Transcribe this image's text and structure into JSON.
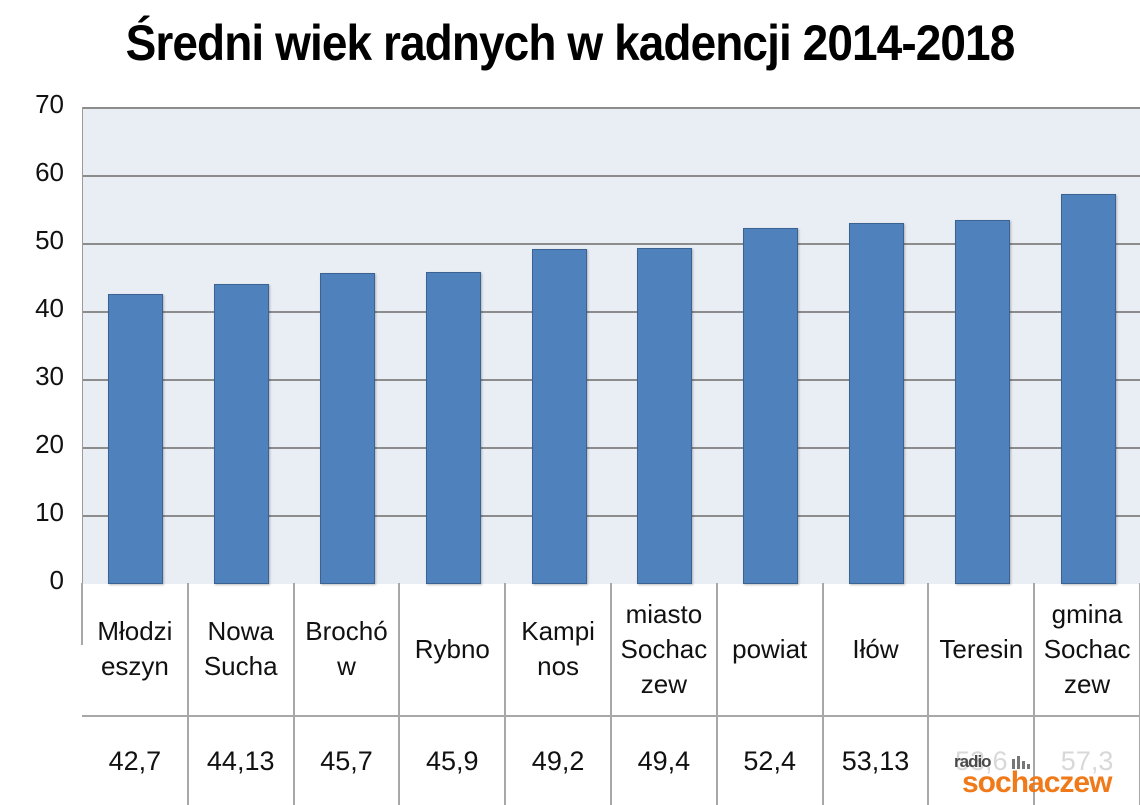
{
  "chart_data": {
    "type": "bar",
    "title": "Średni wiek radnych w kadencji 2014-2018",
    "xlabel": "",
    "ylabel": "",
    "ylim": [
      0,
      70
    ],
    "yticks": [
      0,
      10,
      20,
      30,
      40,
      50,
      60,
      70
    ],
    "grid": true,
    "legend": null,
    "categories": [
      "Młodzieszyn",
      "Nowa Sucha",
      "Brochów",
      "Rybno",
      "Kampinos",
      "miasto Sochaczew",
      "powiat",
      "Iłów",
      "Teresin",
      "gmina Sochaczew"
    ],
    "category_labels_wrapped": [
      "Młodzi\neszyn",
      "Nowa\nSucha",
      "Brochó\nw",
      "Rybno",
      "Kampi\nnos",
      "miasto\nSochac\nzew",
      "powiat",
      "Iłów",
      "Teresin",
      "gmina\nSochac\nzew"
    ],
    "values": [
      42.7,
      44.13,
      45.7,
      45.9,
      49.2,
      49.4,
      52.4,
      53.13,
      53.6,
      57.3
    ],
    "value_labels": [
      "42,7",
      "44,13",
      "45,7",
      "45,9",
      "49,2",
      "49,4",
      "52,4",
      "53,13",
      "53,6",
      "57,3"
    ],
    "data_table": true,
    "bar_color": "#4f81bd",
    "plot_background": "#e9edf4"
  },
  "title": "Średni wiek radnych w kadencji 2014-2018",
  "watermark": {
    "line1": "radio",
    "line2": "sochaczew",
    "color": "#f07a1a"
  }
}
